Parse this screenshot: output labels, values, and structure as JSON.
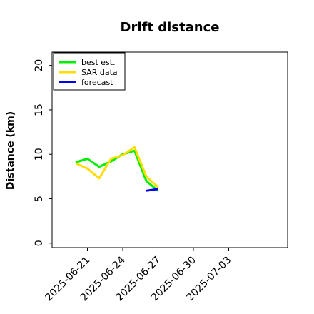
{
  "chart_data": {
    "type": "line",
    "title": "Drift distance",
    "xlabel": "",
    "ylabel": "Distance (km)",
    "ylim": [
      -0.5,
      21.5
    ],
    "yticks": [
      0,
      5,
      10,
      15,
      20
    ],
    "xlim": [
      "2025-06-18",
      "2025-07-08"
    ],
    "xticks": [
      "2025-06-21",
      "2025-06-24",
      "2025-06-27",
      "2025-06-30",
      "2025-07-03"
    ],
    "grid": false,
    "legend_position": "top-left",
    "series": [
      {
        "name": "best est.",
        "color": "#00ee00",
        "x": [
          "2025-06-20",
          "2025-06-21",
          "2025-06-22",
          "2025-06-23",
          "2025-06-24",
          "2025-06-25",
          "2025-06-26",
          "2025-06-27"
        ],
        "y": [
          9.1,
          9.5,
          8.6,
          9.2,
          10.0,
          10.4,
          7.0,
          5.9
        ]
      },
      {
        "name": "SAR data",
        "color": "#ffdd00",
        "x": [
          "2025-06-20",
          "2025-06-21",
          "2025-06-22",
          "2025-06-23",
          "2025-06-24",
          "2025-06-25",
          "2025-06-26",
          "2025-06-27"
        ],
        "y": [
          9.0,
          8.4,
          7.3,
          9.5,
          9.9,
          10.8,
          7.5,
          6.3
        ]
      },
      {
        "name": "forecast",
        "color": "#0000ee",
        "x": [
          "2025-06-26",
          "2025-06-27"
        ],
        "y": [
          5.9,
          6.1
        ]
      }
    ]
  }
}
